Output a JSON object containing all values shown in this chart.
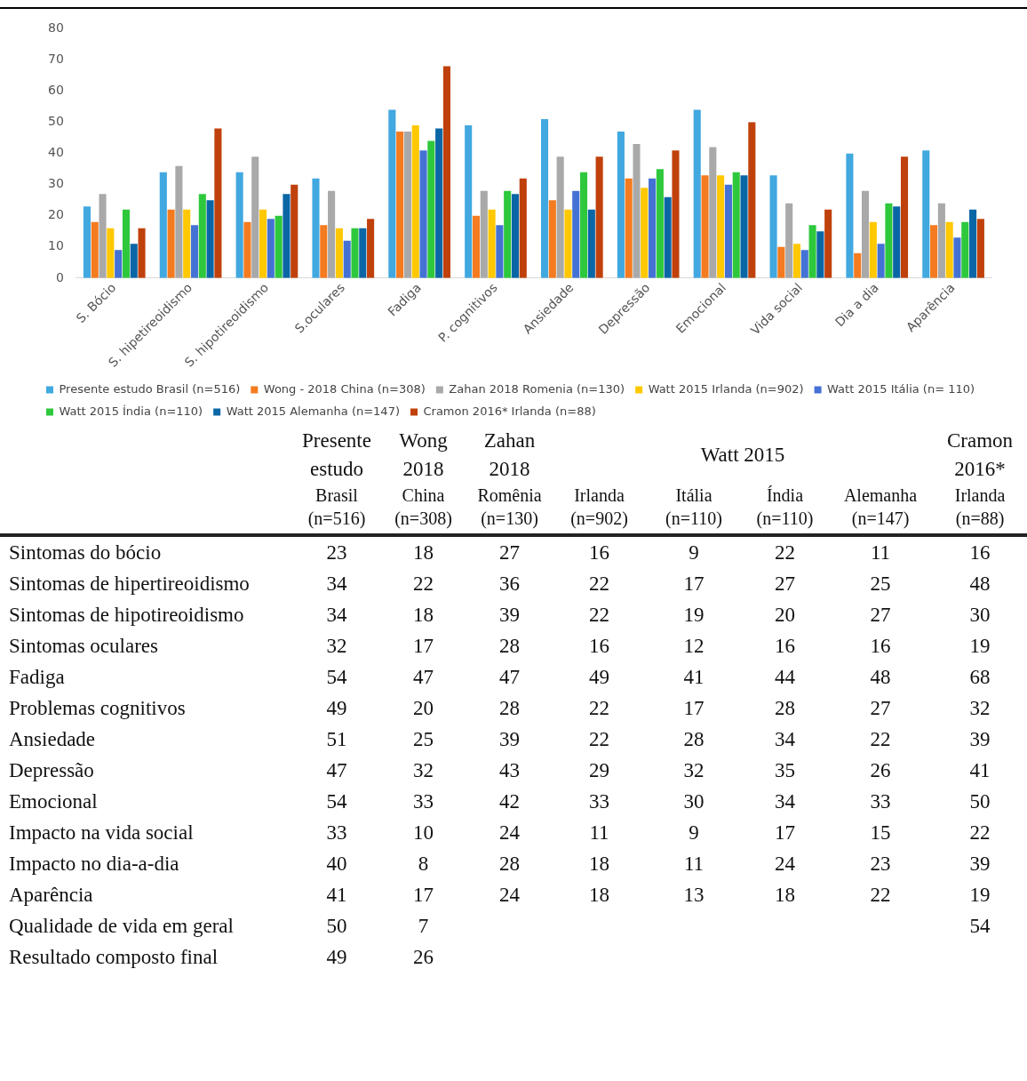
{
  "chart_data": [
    {
      "type": "bar",
      "categories": [
        "S. Bócio",
        "S. hipetireoidismo",
        "S. hipotireoidismo",
        "S.oculares",
        "Fadiga",
        "P. cognitivos",
        "Ansiedade",
        "Depressão",
        "Emocional",
        "Vida social",
        "Dia a dia",
        "Aparência"
      ],
      "series": [
        {
          "name": "Presente estudo Brasil (n=516)",
          "color": "#41a8e0",
          "values": [
            23,
            34,
            34,
            32,
            54,
            49,
            51,
            47,
            54,
            33,
            40,
            41
          ]
        },
        {
          "name": "Wong - 2018 China (n=308)",
          "color": "#f47b20",
          "values": [
            18,
            22,
            18,
            17,
            47,
            20,
            25,
            32,
            33,
            10,
            8,
            17
          ]
        },
        {
          "name": "Zahan 2018 Romenia (n=130)",
          "color": "#a9a9a9",
          "values": [
            27,
            36,
            39,
            28,
            47,
            28,
            39,
            43,
            42,
            24,
            28,
            24
          ]
        },
        {
          "name": "Watt 2015 Irlanda (n=902)",
          "color": "#ffc800",
          "values": [
            16,
            22,
            22,
            16,
            49,
            22,
            22,
            29,
            33,
            11,
            18,
            18
          ]
        },
        {
          "name": "Watt 2015 Itália (n= 110)",
          "color": "#4472d4",
          "values": [
            9,
            17,
            19,
            12,
            41,
            17,
            28,
            32,
            30,
            9,
            11,
            13
          ]
        },
        {
          "name": "Watt 2015 Índia (n=110)",
          "color": "#2ec83c",
          "values": [
            22,
            27,
            20,
            16,
            44,
            28,
            34,
            35,
            34,
            17,
            24,
            18
          ]
        },
        {
          "name": "Watt 2015 Alemanha (n=147)",
          "color": "#0b66a6",
          "values": [
            11,
            25,
            27,
            16,
            48,
            27,
            22,
            26,
            33,
            15,
            23,
            22
          ]
        },
        {
          "name": "Cramon 2016* Irlanda (n=88)",
          "color": "#c0410b",
          "values": [
            16,
            48,
            30,
            19,
            68,
            32,
            39,
            41,
            50,
            22,
            39,
            19
          ]
        }
      ],
      "ylim": [
        0,
        80
      ],
      "yticks": [
        0,
        10,
        20,
        30,
        40,
        50,
        60,
        70,
        80
      ],
      "grid": false,
      "legend": "bottom"
    },
    {
      "type": "heatmap",
      "categories": [
        "Brasil (n=516)",
        "China (n=308)",
        "Romênia (n=130)",
        "Irlanda (n=902)",
        "Itália (n=110)",
        "Índia (n=110)",
        "Alemanha (n=147)",
        "Irlanda (n=88)"
      ],
      "y_categories": [
        "Sintomas do bócio",
        "Sintomas de hipertireoidismo",
        "Sintomas de hipotireoidismo",
        "Sintomas oculares",
        "Fadiga",
        "Problemas cognitivos",
        "Ansiedade",
        "Depressão",
        "Emocional",
        "Impacto na vida social",
        "Impacto no dia-a-dia",
        "Aparência",
        "Qualidade de vida em geral",
        "Resultado composto final"
      ],
      "cells": [
        [
          23,
          18,
          27,
          16,
          9,
          22,
          11,
          16
        ],
        [
          34,
          22,
          36,
          22,
          17,
          27,
          25,
          48
        ],
        [
          34,
          18,
          39,
          22,
          19,
          20,
          27,
          30
        ],
        [
          32,
          17,
          28,
          16,
          12,
          16,
          16,
          19
        ],
        [
          54,
          47,
          47,
          49,
          41,
          44,
          48,
          68
        ],
        [
          49,
          20,
          28,
          22,
          17,
          28,
          27,
          32
        ],
        [
          51,
          25,
          39,
          22,
          28,
          34,
          22,
          39
        ],
        [
          47,
          32,
          43,
          29,
          32,
          35,
          26,
          41
        ],
        [
          54,
          33,
          42,
          33,
          30,
          34,
          33,
          50
        ],
        [
          33,
          10,
          24,
          11,
          9,
          17,
          15,
          22
        ],
        [
          40,
          8,
          28,
          18,
          11,
          24,
          23,
          39
        ],
        [
          41,
          17,
          24,
          18,
          13,
          18,
          22,
          19
        ],
        [
          50,
          7,
          null,
          null,
          null,
          null,
          null,
          54
        ],
        [
          49,
          26,
          null,
          null,
          null,
          null,
          null,
          null
        ]
      ],
      "data_labels": true,
      "annotations": [
        "Presente estudo",
        "Wong 2018",
        "Zahan 2018",
        "Watt 2015",
        "Cramon 2016*"
      ]
    }
  ]
}
